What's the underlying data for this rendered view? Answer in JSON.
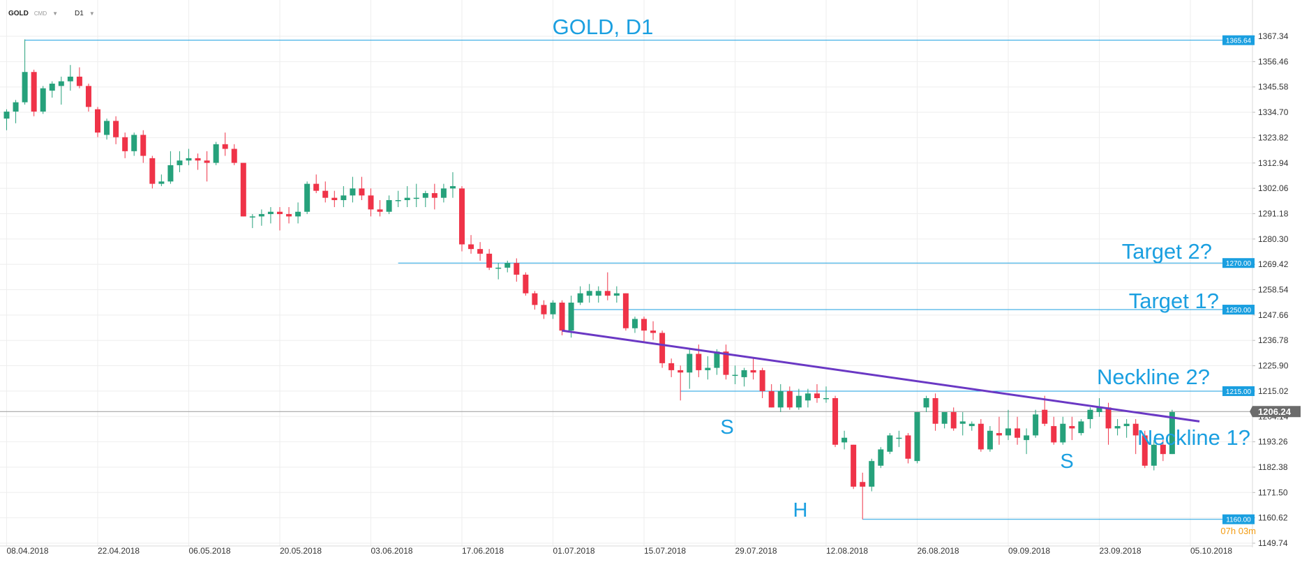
{
  "toolbar": {
    "symbol": "GOLD",
    "market": "CMD",
    "timeframe": "D1",
    "caret_icon": "chevron-down-icon"
  },
  "colors": {
    "bull": "#26a17b",
    "bear": "#ef3348",
    "annotation": "#1a9fe0",
    "neckline": "#6a38c4",
    "grid": "#eeeeee",
    "current_price_line": "#9a9a9a",
    "current_price_badge": "#6b6b6b",
    "countdown": "#f39c12"
  },
  "chart_data": {
    "type": "candlestick",
    "title": "GOLD, D1",
    "ylim": [
      1149.74,
      1367.34
    ],
    "y_ticks": [
      "1367.34",
      "1356.46",
      "1345.58",
      "1334.70",
      "1323.82",
      "1312.94",
      "1302.06",
      "1291.18",
      "1280.30",
      "1269.42",
      "1258.54",
      "1247.66",
      "1236.78",
      "1225.90",
      "1215.02",
      "1204.14",
      "1193.26",
      "1182.38",
      "1171.50",
      "1160.62",
      "1149.74"
    ],
    "x_labels": [
      "08.04.2018",
      "22.04.2018",
      "06.05.2018",
      "20.05.2018",
      "03.06.2018",
      "17.06.2018",
      "01.07.2018",
      "15.07.2018",
      "29.07.2018",
      "12.08.2018",
      "26.08.2018",
      "09.09.2018",
      "23.09.2018",
      "05.10.2018"
    ],
    "candles": [
      {
        "date": "2018-04-06",
        "o": 1332,
        "h": 1336,
        "l": 1327,
        "c": 1335
      },
      {
        "date": "2018-04-09",
        "o": 1335,
        "h": 1340,
        "l": 1330,
        "c": 1339
      },
      {
        "date": "2018-04-10",
        "o": 1339,
        "h": 1366,
        "l": 1338,
        "c": 1352
      },
      {
        "date": "2018-04-11",
        "o": 1352,
        "h": 1353,
        "l": 1333,
        "c": 1335
      },
      {
        "date": "2018-04-12",
        "o": 1335,
        "h": 1346,
        "l": 1334,
        "c": 1345
      },
      {
        "date": "2018-04-13",
        "o": 1344,
        "h": 1348,
        "l": 1341,
        "c": 1347
      },
      {
        "date": "2018-04-16",
        "o": 1346,
        "h": 1350,
        "l": 1338,
        "c": 1348
      },
      {
        "date": "2018-04-17",
        "o": 1348,
        "h": 1355,
        "l": 1344,
        "c": 1350
      },
      {
        "date": "2018-04-18",
        "o": 1350,
        "h": 1354,
        "l": 1345,
        "c": 1346
      },
      {
        "date": "2018-04-19",
        "o": 1346,
        "h": 1347,
        "l": 1335,
        "c": 1337
      },
      {
        "date": "2018-04-20",
        "o": 1336,
        "h": 1337,
        "l": 1324,
        "c": 1326
      },
      {
        "date": "2018-04-23",
        "o": 1325,
        "h": 1332,
        "l": 1323,
        "c": 1331
      },
      {
        "date": "2018-04-24",
        "o": 1331,
        "h": 1333,
        "l": 1321,
        "c": 1324
      },
      {
        "date": "2018-04-25",
        "o": 1324,
        "h": 1326,
        "l": 1315,
        "c": 1318
      },
      {
        "date": "2018-04-26",
        "o": 1318,
        "h": 1326,
        "l": 1316,
        "c": 1325
      },
      {
        "date": "2018-04-27",
        "o": 1325,
        "h": 1327,
        "l": 1313,
        "c": 1316
      },
      {
        "date": "2018-04-30",
        "o": 1315,
        "h": 1316,
        "l": 1302,
        "c": 1304
      },
      {
        "date": "2018-05-01",
        "o": 1304,
        "h": 1308,
        "l": 1303,
        "c": 1305
      },
      {
        "date": "2018-05-02",
        "o": 1305,
        "h": 1318,
        "l": 1304,
        "c": 1312
      },
      {
        "date": "2018-05-03",
        "o": 1312,
        "h": 1318,
        "l": 1309,
        "c": 1314
      },
      {
        "date": "2018-05-04",
        "o": 1314,
        "h": 1319,
        "l": 1312,
        "c": 1315
      },
      {
        "date": "2018-05-07",
        "o": 1315,
        "h": 1317,
        "l": 1310,
        "c": 1314
      },
      {
        "date": "2018-05-08",
        "o": 1314,
        "h": 1318,
        "l": 1305,
        "c": 1313
      },
      {
        "date": "2018-05-09",
        "o": 1313,
        "h": 1322,
        "l": 1312,
        "c": 1321
      },
      {
        "date": "2018-05-10",
        "o": 1321,
        "h": 1326,
        "l": 1316,
        "c": 1319
      },
      {
        "date": "2018-05-11",
        "o": 1319,
        "h": 1321,
        "l": 1312,
        "c": 1313
      },
      {
        "date": "2018-05-14",
        "o": 1313,
        "h": 1313,
        "l": 1290,
        "c": 1290
      },
      {
        "date": "2018-05-15",
        "o": 1290,
        "h": 1291,
        "l": 1285,
        "c": 1290
      },
      {
        "date": "2018-05-16",
        "o": 1290,
        "h": 1293,
        "l": 1286,
        "c": 1291
      },
      {
        "date": "2018-05-17",
        "o": 1291,
        "h": 1294,
        "l": 1287,
        "c": 1292
      },
      {
        "date": "2018-05-18",
        "o": 1292,
        "h": 1294,
        "l": 1284,
        "c": 1291
      },
      {
        "date": "2018-05-21",
        "o": 1291,
        "h": 1294,
        "l": 1287,
        "c": 1290
      },
      {
        "date": "2018-05-22",
        "o": 1290,
        "h": 1296,
        "l": 1287,
        "c": 1292
      },
      {
        "date": "2018-05-23",
        "o": 1292,
        "h": 1305,
        "l": 1291,
        "c": 1304
      },
      {
        "date": "2018-05-24",
        "o": 1304,
        "h": 1308,
        "l": 1300,
        "c": 1301
      },
      {
        "date": "2018-05-25",
        "o": 1301,
        "h": 1305,
        "l": 1296,
        "c": 1298
      },
      {
        "date": "2018-05-28",
        "o": 1298,
        "h": 1301,
        "l": 1294,
        "c": 1297
      },
      {
        "date": "2018-05-29",
        "o": 1297,
        "h": 1303,
        "l": 1294,
        "c": 1299
      },
      {
        "date": "2018-05-30",
        "o": 1299,
        "h": 1307,
        "l": 1296,
        "c": 1302
      },
      {
        "date": "2018-05-31",
        "o": 1302,
        "h": 1307,
        "l": 1297,
        "c": 1299
      },
      {
        "date": "2018-06-01",
        "o": 1299,
        "h": 1302,
        "l": 1290,
        "c": 1293
      },
      {
        "date": "2018-06-04",
        "o": 1293,
        "h": 1297,
        "l": 1290,
        "c": 1292
      },
      {
        "date": "2018-06-05",
        "o": 1292,
        "h": 1299,
        "l": 1291,
        "c": 1297
      },
      {
        "date": "2018-06-06",
        "o": 1297,
        "h": 1301,
        "l": 1294,
        "c": 1297
      },
      {
        "date": "2018-06-07",
        "o": 1297,
        "h": 1303,
        "l": 1294,
        "c": 1298
      },
      {
        "date": "2018-06-08",
        "o": 1298,
        "h": 1304,
        "l": 1294,
        "c": 1298
      },
      {
        "date": "2018-06-11",
        "o": 1298,
        "h": 1301,
        "l": 1294,
        "c": 1300
      },
      {
        "date": "2018-06-12",
        "o": 1300,
        "h": 1304,
        "l": 1293,
        "c": 1298
      },
      {
        "date": "2018-06-13",
        "o": 1298,
        "h": 1304,
        "l": 1296,
        "c": 1302
      },
      {
        "date": "2018-06-14",
        "o": 1302,
        "h": 1309,
        "l": 1298,
        "c": 1303
      },
      {
        "date": "2018-06-15",
        "o": 1302,
        "h": 1303,
        "l": 1275,
        "c": 1278
      },
      {
        "date": "2018-06-18",
        "o": 1278,
        "h": 1282,
        "l": 1274,
        "c": 1276
      },
      {
        "date": "2018-06-19",
        "o": 1276,
        "h": 1279,
        "l": 1271,
        "c": 1274
      },
      {
        "date": "2018-06-20",
        "o": 1274,
        "h": 1276,
        "l": 1267,
        "c": 1268
      },
      {
        "date": "2018-06-21",
        "o": 1268,
        "h": 1270,
        "l": 1263,
        "c": 1268
      },
      {
        "date": "2018-06-22",
        "o": 1268,
        "h": 1271,
        "l": 1266,
        "c": 1270
      },
      {
        "date": "2018-06-25",
        "o": 1270,
        "h": 1272,
        "l": 1262,
        "c": 1265
      },
      {
        "date": "2018-06-26",
        "o": 1265,
        "h": 1266,
        "l": 1256,
        "c": 1257
      },
      {
        "date": "2018-06-27",
        "o": 1257,
        "h": 1258,
        "l": 1250,
        "c": 1252
      },
      {
        "date": "2018-06-28",
        "o": 1252,
        "h": 1254,
        "l": 1246,
        "c": 1248
      },
      {
        "date": "2018-06-29",
        "o": 1248,
        "h": 1254,
        "l": 1246,
        "c": 1253
      },
      {
        "date": "2018-07-02",
        "o": 1253,
        "h": 1254,
        "l": 1239,
        "c": 1241
      },
      {
        "date": "2018-07-03",
        "o": 1241,
        "h": 1256,
        "l": 1238,
        "c": 1253
      },
      {
        "date": "2018-07-04",
        "o": 1253,
        "h": 1260,
        "l": 1252,
        "c": 1257
      },
      {
        "date": "2018-07-05",
        "o": 1256,
        "h": 1261,
        "l": 1253,
        "c": 1258
      },
      {
        "date": "2018-07-06",
        "o": 1256,
        "h": 1260,
        "l": 1253,
        "c": 1258
      },
      {
        "date": "2018-07-09",
        "o": 1258,
        "h": 1266,
        "l": 1254,
        "c": 1256
      },
      {
        "date": "2018-07-10",
        "o": 1256,
        "h": 1260,
        "l": 1253,
        "c": 1257
      },
      {
        "date": "2018-07-11",
        "o": 1257,
        "h": 1257,
        "l": 1241,
        "c": 1242
      },
      {
        "date": "2018-07-12",
        "o": 1242,
        "h": 1247,
        "l": 1240,
        "c": 1246
      },
      {
        "date": "2018-07-13",
        "o": 1246,
        "h": 1247,
        "l": 1236,
        "c": 1241
      },
      {
        "date": "2018-07-16",
        "o": 1241,
        "h": 1245,
        "l": 1237,
        "c": 1240
      },
      {
        "date": "2018-07-17",
        "o": 1240,
        "h": 1241,
        "l": 1225,
        "c": 1227
      },
      {
        "date": "2018-07-18",
        "o": 1227,
        "h": 1229,
        "l": 1221,
        "c": 1224
      },
      {
        "date": "2018-07-19",
        "o": 1224,
        "h": 1226,
        "l": 1211,
        "c": 1223
      },
      {
        "date": "2018-07-20",
        "o": 1223,
        "h": 1233,
        "l": 1216,
        "c": 1231
      },
      {
        "date": "2018-07-23",
        "o": 1231,
        "h": 1235,
        "l": 1221,
        "c": 1224
      },
      {
        "date": "2018-07-24",
        "o": 1224,
        "h": 1230,
        "l": 1220,
        "c": 1225
      },
      {
        "date": "2018-07-25",
        "o": 1225,
        "h": 1233,
        "l": 1222,
        "c": 1232
      },
      {
        "date": "2018-07-26",
        "o": 1232,
        "h": 1235,
        "l": 1220,
        "c": 1222
      },
      {
        "date": "2018-07-27",
        "o": 1222,
        "h": 1226,
        "l": 1218,
        "c": 1222
      },
      {
        "date": "2018-07-30",
        "o": 1221,
        "h": 1225,
        "l": 1217,
        "c": 1224
      },
      {
        "date": "2018-07-31",
        "o": 1224,
        "h": 1229,
        "l": 1220,
        "c": 1223
      },
      {
        "date": "2018-08-01",
        "o": 1224,
        "h": 1225,
        "l": 1212,
        "c": 1215
      },
      {
        "date": "2018-08-02",
        "o": 1215,
        "h": 1218,
        "l": 1208,
        "c": 1208
      },
      {
        "date": "2018-08-03",
        "o": 1208,
        "h": 1218,
        "l": 1206,
        "c": 1215
      },
      {
        "date": "2018-08-06",
        "o": 1215,
        "h": 1217,
        "l": 1207,
        "c": 1208
      },
      {
        "date": "2018-08-07",
        "o": 1208,
        "h": 1216,
        "l": 1207,
        "c": 1213
      },
      {
        "date": "2018-08-08",
        "o": 1211,
        "h": 1216,
        "l": 1208,
        "c": 1214
      },
      {
        "date": "2018-08-09",
        "o": 1214,
        "h": 1218,
        "l": 1210,
        "c": 1212
      },
      {
        "date": "2018-08-10",
        "o": 1212,
        "h": 1217,
        "l": 1210,
        "c": 1212
      },
      {
        "date": "2018-08-13",
        "o": 1212,
        "h": 1213,
        "l": 1191,
        "c": 1192
      },
      {
        "date": "2018-08-14",
        "o": 1193,
        "h": 1198,
        "l": 1190,
        "c": 1195
      },
      {
        "date": "2018-08-15",
        "o": 1192,
        "h": 1192,
        "l": 1173,
        "c": 1174
      },
      {
        "date": "2018-08-16",
        "o": 1176,
        "h": 1180,
        "l": 1160,
        "c": 1174
      },
      {
        "date": "2018-08-17",
        "o": 1174,
        "h": 1186,
        "l": 1172,
        "c": 1185
      },
      {
        "date": "2018-08-20",
        "o": 1183,
        "h": 1191,
        "l": 1182,
        "c": 1190
      },
      {
        "date": "2018-08-21",
        "o": 1189,
        "h": 1197,
        "l": 1188,
        "c": 1196
      },
      {
        "date": "2018-08-22",
        "o": 1195,
        "h": 1198,
        "l": 1191,
        "c": 1195
      },
      {
        "date": "2018-08-23",
        "o": 1196,
        "h": 1197,
        "l": 1184,
        "c": 1186
      },
      {
        "date": "2018-08-24",
        "o": 1185,
        "h": 1206,
        "l": 1184,
        "c": 1206
      },
      {
        "date": "2018-08-27",
        "o": 1208,
        "h": 1213,
        "l": 1206,
        "c": 1212
      },
      {
        "date": "2018-08-28",
        "o": 1212,
        "h": 1214,
        "l": 1198,
        "c": 1201
      },
      {
        "date": "2018-08-29",
        "o": 1201,
        "h": 1206,
        "l": 1199,
        "c": 1206
      },
      {
        "date": "2018-08-30",
        "o": 1206,
        "h": 1208,
        "l": 1198,
        "c": 1199
      },
      {
        "date": "2018-08-31",
        "o": 1201,
        "h": 1206,
        "l": 1196,
        "c": 1202
      },
      {
        "date": "2018-09-03",
        "o": 1200,
        "h": 1202,
        "l": 1198,
        "c": 1201
      },
      {
        "date": "2018-09-04",
        "o": 1201,
        "h": 1203,
        "l": 1189,
        "c": 1190
      },
      {
        "date": "2018-09-05",
        "o": 1190,
        "h": 1200,
        "l": 1189,
        "c": 1198
      },
      {
        "date": "2018-09-06",
        "o": 1197,
        "h": 1204,
        "l": 1192,
        "c": 1196
      },
      {
        "date": "2018-09-07",
        "o": 1196,
        "h": 1207,
        "l": 1194,
        "c": 1199
      },
      {
        "date": "2018-09-10",
        "o": 1199,
        "h": 1204,
        "l": 1192,
        "c": 1195
      },
      {
        "date": "2018-09-11",
        "o": 1194,
        "h": 1199,
        "l": 1188,
        "c": 1196
      },
      {
        "date": "2018-09-12",
        "o": 1196,
        "h": 1207,
        "l": 1195,
        "c": 1205
      },
      {
        "date": "2018-09-13",
        "o": 1207,
        "h": 1213,
        "l": 1200,
        "c": 1201
      },
      {
        "date": "2018-09-14",
        "o": 1200,
        "h": 1204,
        "l": 1192,
        "c": 1193
      },
      {
        "date": "2018-09-17",
        "o": 1193,
        "h": 1204,
        "l": 1192,
        "c": 1201
      },
      {
        "date": "2018-09-18",
        "o": 1200,
        "h": 1204,
        "l": 1194,
        "c": 1199
      },
      {
        "date": "2018-09-19",
        "o": 1197,
        "h": 1203,
        "l": 1196,
        "c": 1202
      },
      {
        "date": "2018-09-20",
        "o": 1203,
        "h": 1208,
        "l": 1199,
        "c": 1207
      },
      {
        "date": "2018-09-21",
        "o": 1206,
        "h": 1212,
        "l": 1204,
        "c": 1208
      },
      {
        "date": "2018-09-24",
        "o": 1208,
        "h": 1210,
        "l": 1192,
        "c": 1199
      },
      {
        "date": "2018-09-25",
        "o": 1199,
        "h": 1203,
        "l": 1196,
        "c": 1200
      },
      {
        "date": "2018-09-26",
        "o": 1200,
        "h": 1203,
        "l": 1195,
        "c": 1201
      },
      {
        "date": "2018-09-27",
        "o": 1201,
        "h": 1203,
        "l": 1188,
        "c": 1196
      },
      {
        "date": "2018-09-28",
        "o": 1196,
        "h": 1198,
        "l": 1182,
        "c": 1183
      },
      {
        "date": "2018-10-01",
        "o": 1183,
        "h": 1194,
        "l": 1181,
        "c": 1192
      },
      {
        "date": "2018-10-02",
        "o": 1192,
        "h": 1194,
        "l": 1185,
        "c": 1188
      },
      {
        "date": "2018-10-03",
        "o": 1188,
        "h": 1207,
        "l": 1188,
        "c": 1206
      }
    ],
    "current_price": {
      "label": "1206.24",
      "value": 1206.24
    },
    "countdown": "07h 03m",
    "levels": [
      {
        "price": 1365.64,
        "label": "1365.64",
        "from": "2018-04-10"
      },
      {
        "price": 1270.0,
        "label": "1270.00",
        "from": "2018-06-06"
      },
      {
        "price": 1250.0,
        "label": "1250.00",
        "from": "2018-07-03"
      },
      {
        "price": 1215.0,
        "label": "1215.00",
        "from": "2018-07-19"
      },
      {
        "price": 1160.0,
        "label": "1160.00",
        "from": "2018-08-16"
      }
    ],
    "neckline": {
      "from": {
        "date": "2018-07-02",
        "price": 1241
      },
      "to": {
        "date": "2018-10-08",
        "price": 1202
      }
    },
    "annotations": {
      "title": "GOLD, D1",
      "target2": "Target 2?",
      "target1": "Target 1?",
      "neckline2": "Neckline 2?",
      "neckline1": "Neckline 1?",
      "shoulder_left": "S",
      "head": "H",
      "shoulder_right": "S"
    }
  }
}
